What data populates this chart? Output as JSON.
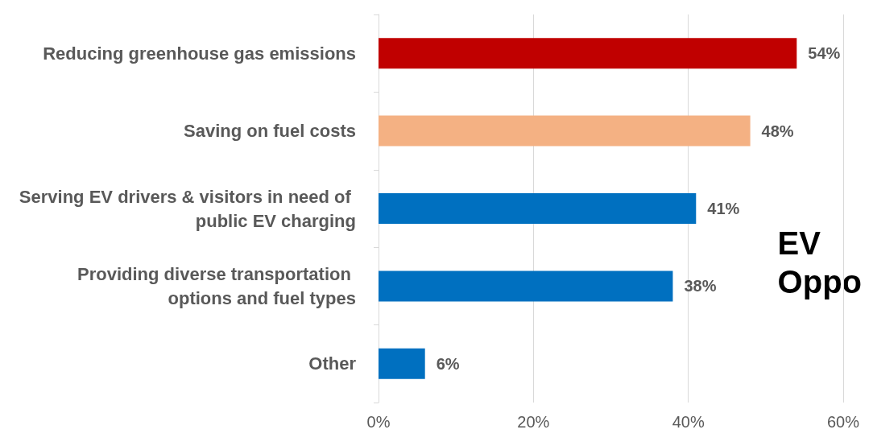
{
  "chart_data": {
    "type": "bar",
    "orientation": "horizontal",
    "categories": [
      "Reducing greenhouse gas emissions",
      "Saving on fuel costs",
      "Serving EV drivers & visitors in need of public EV charging",
      "Providing diverse transportation options and fuel types",
      "Other"
    ],
    "values": [
      54,
      48,
      41,
      38,
      6
    ],
    "colors": [
      "#c00000",
      "#f4b183",
      "#0070c0",
      "#0070c0",
      "#0070c0"
    ],
    "value_labels": [
      "54%",
      "48%",
      "41%",
      "38%",
      "6%"
    ],
    "xlim": [
      0,
      60
    ],
    "xticks": [
      {
        "value": 0,
        "label": "0%"
      },
      {
        "value": 20,
        "label": "20%"
      },
      {
        "value": 40,
        "label": "40%"
      },
      {
        "value": 60,
        "label": "60%"
      }
    ],
    "grid": "x",
    "annotations": [
      "EV Oppo"
    ]
  }
}
